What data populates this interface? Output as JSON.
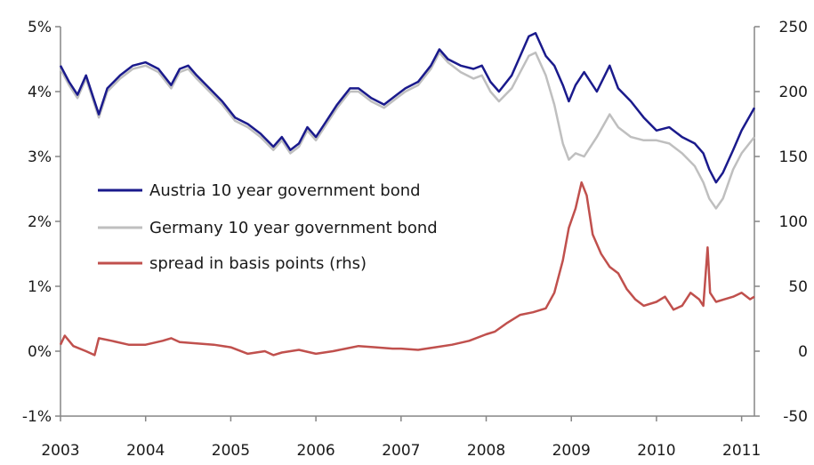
{
  "chart_data": {
    "type": "line",
    "title": "",
    "xlabel": "",
    "ylabel": "",
    "y2label": "",
    "x_ticks": [
      "2003",
      "2004",
      "2005",
      "2006",
      "2007",
      "2008",
      "2009",
      "2010",
      "2011"
    ],
    "x_range": [
      2003.0,
      2011.15
    ],
    "y_left": {
      "ticks": [
        "-1%",
        "0%",
        "1%",
        "2%",
        "3%",
        "4%",
        "5%"
      ],
      "range": [
        -1,
        5
      ]
    },
    "y_right": {
      "ticks": [
        "-50",
        "0",
        "50",
        "100",
        "150",
        "200",
        "250"
      ],
      "range": [
        -50,
        250
      ]
    },
    "grid": false,
    "legend_position": "middle-left",
    "series": [
      {
        "name": "Austria 10 year government bond",
        "axis": "left",
        "color": "#1a1a8c",
        "points": [
          [
            2003.0,
            4.4
          ],
          [
            2003.1,
            4.15
          ],
          [
            2003.2,
            3.95
          ],
          [
            2003.3,
            4.25
          ],
          [
            2003.4,
            3.85
          ],
          [
            2003.45,
            3.65
          ],
          [
            2003.55,
            4.05
          ],
          [
            2003.7,
            4.25
          ],
          [
            2003.85,
            4.4
          ],
          [
            2004.0,
            4.45
          ],
          [
            2004.15,
            4.35
          ],
          [
            2004.3,
            4.1
          ],
          [
            2004.4,
            4.35
          ],
          [
            2004.5,
            4.4
          ],
          [
            2004.6,
            4.25
          ],
          [
            2004.75,
            4.05
          ],
          [
            2004.9,
            3.85
          ],
          [
            2005.05,
            3.6
          ],
          [
            2005.2,
            3.5
          ],
          [
            2005.35,
            3.35
          ],
          [
            2005.5,
            3.15
          ],
          [
            2005.6,
            3.3
          ],
          [
            2005.7,
            3.1
          ],
          [
            2005.8,
            3.2
          ],
          [
            2005.9,
            3.45
          ],
          [
            2006.0,
            3.3
          ],
          [
            2006.1,
            3.5
          ],
          [
            2006.25,
            3.8
          ],
          [
            2006.4,
            4.05
          ],
          [
            2006.5,
            4.05
          ],
          [
            2006.65,
            3.9
          ],
          [
            2006.8,
            3.8
          ],
          [
            2006.95,
            3.95
          ],
          [
            2007.05,
            4.05
          ],
          [
            2007.2,
            4.15
          ],
          [
            2007.35,
            4.4
          ],
          [
            2007.45,
            4.65
          ],
          [
            2007.55,
            4.5
          ],
          [
            2007.7,
            4.4
          ],
          [
            2007.85,
            4.35
          ],
          [
            2007.95,
            4.4
          ],
          [
            2008.05,
            4.15
          ],
          [
            2008.15,
            4.0
          ],
          [
            2008.3,
            4.25
          ],
          [
            2008.4,
            4.55
          ],
          [
            2008.5,
            4.85
          ],
          [
            2008.58,
            4.9
          ],
          [
            2008.7,
            4.55
          ],
          [
            2008.8,
            4.4
          ],
          [
            2008.9,
            4.1
          ],
          [
            2008.97,
            3.85
          ],
          [
            2009.05,
            4.1
          ],
          [
            2009.15,
            4.3
          ],
          [
            2009.3,
            4.0
          ],
          [
            2009.45,
            4.4
          ],
          [
            2009.55,
            4.05
          ],
          [
            2009.7,
            3.85
          ],
          [
            2009.85,
            3.6
          ],
          [
            2010.0,
            3.4
          ],
          [
            2010.15,
            3.45
          ],
          [
            2010.3,
            3.3
          ],
          [
            2010.45,
            3.2
          ],
          [
            2010.55,
            3.05
          ],
          [
            2010.62,
            2.8
          ],
          [
            2010.7,
            2.6
          ],
          [
            2010.78,
            2.75
          ],
          [
            2010.9,
            3.1
          ],
          [
            2011.0,
            3.4
          ],
          [
            2011.15,
            3.75
          ]
        ]
      },
      {
        "name": "Germany 10 year government bond",
        "axis": "left",
        "color": "#bfbfbf",
        "points": [
          [
            2003.0,
            4.35
          ],
          [
            2003.1,
            4.1
          ],
          [
            2003.2,
            3.9
          ],
          [
            2003.3,
            4.2
          ],
          [
            2003.4,
            3.8
          ],
          [
            2003.45,
            3.6
          ],
          [
            2003.55,
            4.0
          ],
          [
            2003.7,
            4.2
          ],
          [
            2003.85,
            4.35
          ],
          [
            2004.0,
            4.4
          ],
          [
            2004.15,
            4.3
          ],
          [
            2004.3,
            4.05
          ],
          [
            2004.4,
            4.3
          ],
          [
            2004.5,
            4.35
          ],
          [
            2004.6,
            4.2
          ],
          [
            2004.75,
            4.0
          ],
          [
            2004.9,
            3.8
          ],
          [
            2005.05,
            3.55
          ],
          [
            2005.2,
            3.45
          ],
          [
            2005.35,
            3.3
          ],
          [
            2005.5,
            3.1
          ],
          [
            2005.6,
            3.25
          ],
          [
            2005.7,
            3.05
          ],
          [
            2005.8,
            3.15
          ],
          [
            2005.9,
            3.4
          ],
          [
            2006.0,
            3.25
          ],
          [
            2006.1,
            3.45
          ],
          [
            2006.25,
            3.75
          ],
          [
            2006.4,
            4.0
          ],
          [
            2006.5,
            4.0
          ],
          [
            2006.65,
            3.85
          ],
          [
            2006.8,
            3.75
          ],
          [
            2006.95,
            3.9
          ],
          [
            2007.05,
            4.0
          ],
          [
            2007.2,
            4.1
          ],
          [
            2007.35,
            4.35
          ],
          [
            2007.45,
            4.6
          ],
          [
            2007.55,
            4.45
          ],
          [
            2007.7,
            4.3
          ],
          [
            2007.85,
            4.2
          ],
          [
            2007.95,
            4.25
          ],
          [
            2008.05,
            4.0
          ],
          [
            2008.15,
            3.85
          ],
          [
            2008.3,
            4.05
          ],
          [
            2008.4,
            4.3
          ],
          [
            2008.5,
            4.55
          ],
          [
            2008.58,
            4.6
          ],
          [
            2008.7,
            4.25
          ],
          [
            2008.8,
            3.8
          ],
          [
            2008.9,
            3.2
          ],
          [
            2008.97,
            2.95
          ],
          [
            2009.05,
            3.05
          ],
          [
            2009.15,
            3.0
          ],
          [
            2009.3,
            3.3
          ],
          [
            2009.45,
            3.65
          ],
          [
            2009.55,
            3.45
          ],
          [
            2009.7,
            3.3
          ],
          [
            2009.85,
            3.25
          ],
          [
            2010.0,
            3.25
          ],
          [
            2010.15,
            3.2
          ],
          [
            2010.3,
            3.05
          ],
          [
            2010.45,
            2.85
          ],
          [
            2010.55,
            2.6
          ],
          [
            2010.62,
            2.35
          ],
          [
            2010.7,
            2.2
          ],
          [
            2010.78,
            2.35
          ],
          [
            2010.9,
            2.8
          ],
          [
            2011.0,
            3.05
          ],
          [
            2011.15,
            3.3
          ]
        ]
      },
      {
        "name": "spread in basis points (rhs)",
        "axis": "right",
        "color": "#c0504d",
        "points": [
          [
            2003.0,
            5
          ],
          [
            2003.05,
            12
          ],
          [
            2003.15,
            4
          ],
          [
            2003.3,
            0
          ],
          [
            2003.4,
            -3
          ],
          [
            2003.45,
            10
          ],
          [
            2003.6,
            8
          ],
          [
            2003.8,
            5
          ],
          [
            2004.0,
            5
          ],
          [
            2004.2,
            8
          ],
          [
            2004.3,
            10
          ],
          [
            2004.4,
            7
          ],
          [
            2004.6,
            6
          ],
          [
            2004.8,
            5
          ],
          [
            2005.0,
            3
          ],
          [
            2005.2,
            -2
          ],
          [
            2005.4,
            0
          ],
          [
            2005.5,
            -3
          ],
          [
            2005.6,
            -1
          ],
          [
            2005.8,
            1
          ],
          [
            2006.0,
            -2
          ],
          [
            2006.2,
            0
          ],
          [
            2006.35,
            2
          ],
          [
            2006.5,
            4
          ],
          [
            2006.7,
            3
          ],
          [
            2006.9,
            2
          ],
          [
            2007.0,
            2
          ],
          [
            2007.2,
            1
          ],
          [
            2007.4,
            3
          ],
          [
            2007.6,
            5
          ],
          [
            2007.8,
            8
          ],
          [
            2008.0,
            13
          ],
          [
            2008.1,
            15
          ],
          [
            2008.25,
            22
          ],
          [
            2008.4,
            28
          ],
          [
            2008.55,
            30
          ],
          [
            2008.7,
            33
          ],
          [
            2008.8,
            45
          ],
          [
            2008.9,
            70
          ],
          [
            2008.97,
            95
          ],
          [
            2009.05,
            110
          ],
          [
            2009.12,
            130
          ],
          [
            2009.18,
            120
          ],
          [
            2009.25,
            90
          ],
          [
            2009.35,
            75
          ],
          [
            2009.45,
            65
          ],
          [
            2009.55,
            60
          ],
          [
            2009.65,
            48
          ],
          [
            2009.75,
            40
          ],
          [
            2009.85,
            35
          ],
          [
            2010.0,
            38
          ],
          [
            2010.1,
            42
          ],
          [
            2010.2,
            32
          ],
          [
            2010.3,
            35
          ],
          [
            2010.4,
            45
          ],
          [
            2010.5,
            40
          ],
          [
            2010.55,
            35
          ],
          [
            2010.6,
            80
          ],
          [
            2010.63,
            45
          ],
          [
            2010.7,
            38
          ],
          [
            2010.8,
            40
          ],
          [
            2010.9,
            42
          ],
          [
            2011.0,
            45
          ],
          [
            2011.1,
            40
          ],
          [
            2011.15,
            42
          ]
        ]
      }
    ]
  }
}
